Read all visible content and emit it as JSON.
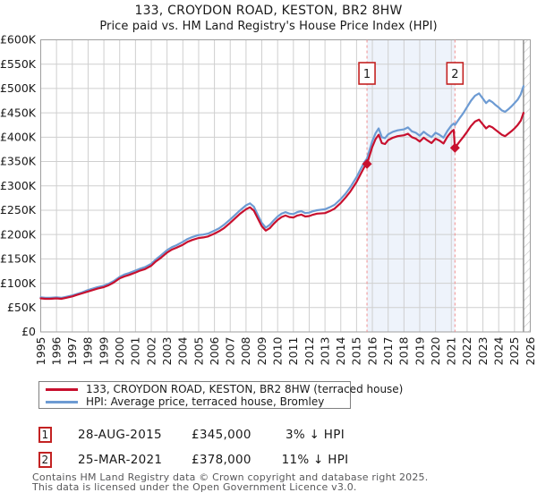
{
  "header": {
    "title": "133, CROYDON ROAD, KESTON, BR2 8HW",
    "subtitle": "Price paid vs. HM Land Registry's House Price Index (HPI)"
  },
  "chart_data": {
    "type": "line",
    "title": "133, CROYDON ROAD, KESTON, BR2 8HW — Price paid vs. HPI",
    "xlabel": "",
    "ylabel": "",
    "x_range": [
      1995,
      2026
    ],
    "ylim": [
      0,
      600000
    ],
    "values_unit": "GBP_thousands",
    "grid": true,
    "legend_position": "bottom",
    "y_tick_labels": [
      "£0",
      "£50K",
      "£100K",
      "£150K",
      "£200K",
      "£250K",
      "£300K",
      "£350K",
      "£400K",
      "£450K",
      "£500K",
      "£550K",
      "£600K"
    ],
    "x_tick_labels": [
      "1995",
      "1996",
      "1997",
      "1998",
      "1999",
      "2000",
      "2001",
      "2002",
      "2003",
      "2004",
      "2005",
      "2006",
      "2007",
      "2008",
      "2009",
      "2010",
      "2011",
      "2012",
      "2013",
      "2014",
      "2015",
      "2016",
      "2017",
      "2018",
      "2019",
      "2020",
      "2021",
      "2022",
      "2023",
      "2024",
      "2025",
      "2026"
    ],
    "x": [
      1995.0,
      1995.3,
      1995.6,
      1996.0,
      1996.3,
      1996.6,
      1997.0,
      1997.3,
      1997.6,
      1998.0,
      1998.3,
      1998.6,
      1999.0,
      1999.3,
      1999.6,
      2000.0,
      2000.3,
      2000.6,
      2001.0,
      2001.3,
      2001.6,
      2002.0,
      2002.3,
      2002.6,
      2003.0,
      2003.3,
      2003.6,
      2004.0,
      2004.3,
      2004.6,
      2005.0,
      2005.3,
      2005.6,
      2006.0,
      2006.3,
      2006.6,
      2007.0,
      2007.3,
      2007.6,
      2008.0,
      2008.25,
      2008.5,
      2008.75,
      2009.0,
      2009.25,
      2009.5,
      2009.75,
      2010.0,
      2010.25,
      2010.5,
      2010.75,
      2011.0,
      2011.25,
      2011.5,
      2011.75,
      2012.0,
      2012.25,
      2012.5,
      2013.0,
      2013.3,
      2013.6,
      2014.0,
      2014.3,
      2014.6,
      2015.0,
      2015.3,
      2015.5,
      2015.66,
      2016.0,
      2016.2,
      2016.4,
      2016.6,
      2016.8,
      2017.0,
      2017.3,
      2017.6,
      2018.0,
      2018.25,
      2018.5,
      2018.75,
      2019.0,
      2019.25,
      2019.5,
      2019.75,
      2020.0,
      2020.25,
      2020.5,
      2020.75,
      2021.0,
      2021.15,
      2021.23,
      2021.5,
      2021.75,
      2022.0,
      2022.25,
      2022.5,
      2022.75,
      2023.0,
      2023.2,
      2023.4,
      2023.6,
      2023.8,
      2024.0,
      2024.2,
      2024.4,
      2024.6,
      2024.8,
      2025.0,
      2025.2,
      2025.4,
      2025.57
    ],
    "series": [
      {
        "name": "133, CROYDON ROAD, KESTON, BR2 8HW (terraced house)",
        "color": "#c8102e",
        "values": [
          69,
          68,
          68,
          69,
          68,
          70,
          73,
          76,
          79,
          83,
          86,
          89,
          92,
          96,
          101,
          110,
          114,
          117,
          122,
          126,
          129,
          136,
          145,
          152,
          163,
          169,
          173,
          179,
          185,
          189,
          193,
          194,
          196,
          202,
          207,
          213,
          224,
          233,
          242,
          252,
          256,
          249,
          233,
          217,
          208,
          213,
          222,
          230,
          236,
          239,
          236,
          235,
          239,
          241,
          237,
          238,
          241,
          243,
          244,
          248,
          253,
          265,
          276,
          288,
          308,
          327,
          339,
          345,
          380,
          396,
          405,
          388,
          386,
          394,
          399,
          402,
          404,
          407,
          400,
          397,
          391,
          399,
          393,
          388,
          397,
          393,
          387,
          401,
          411,
          415,
          378,
          390,
          400,
          411,
          423,
          432,
          436,
          426,
          418,
          423,
          420,
          415,
          410,
          405,
          402,
          407,
          412,
          418,
          425,
          434,
          450
        ]
      },
      {
        "name": "HPI: Average price, terraced house, Bromley",
        "color": "#6d9bd3",
        "values": [
          71,
          70,
          70,
          71,
          70,
          72,
          75,
          78,
          81,
          86,
          89,
          92,
          95,
          99,
          104,
          113,
          118,
          121,
          126,
          130,
          133,
          140,
          149,
          157,
          168,
          174,
          178,
          185,
          191,
          195,
          199,
          200,
          202,
          208,
          213,
          220,
          231,
          240,
          249,
          260,
          264,
          257,
          240,
          224,
          214,
          220,
          229,
          237,
          243,
          246,
          243,
          242,
          246,
          248,
          244,
          245,
          248,
          250,
          252,
          256,
          261,
          273,
          284,
          297,
          318,
          337,
          349,
          356,
          392,
          408,
          418,
          400,
          398,
          406,
          411,
          414,
          416,
          420,
          412,
          409,
          403,
          411,
          405,
          400,
          409,
          405,
          399,
          413,
          424,
          428,
          425,
          438,
          449,
          462,
          475,
          485,
          490,
          479,
          470,
          476,
          472,
          466,
          461,
          455,
          452,
          457,
          463,
          470,
          477,
          488,
          505
        ]
      }
    ],
    "shaded_span": {
      "from": 2015.66,
      "to": 2021.23,
      "color": "#eef3fb"
    },
    "hatch_span": {
      "from": 2025.57,
      "to": 2026
    },
    "sale_markers": [
      {
        "label": "1",
        "x": 2015.66,
        "value": 345
      },
      {
        "label": "2",
        "x": 2021.23,
        "value": 378
      }
    ]
  },
  "legend": {
    "items": [
      {
        "label": "133, CROYDON ROAD, KESTON, BR2 8HW (terraced house)",
        "color": "#c8102e"
      },
      {
        "label": "HPI: Average price, terraced house, Bromley",
        "color": "#6d9bd3"
      }
    ]
  },
  "annotations": [
    {
      "num": "1",
      "date": "28-AUG-2015",
      "price": "£345,000",
      "vs_hpi": "3% ↓ HPI"
    },
    {
      "num": "2",
      "date": "25-MAR-2021",
      "price": "£378,000",
      "vs_hpi": "11% ↓ HPI"
    }
  ],
  "footer": {
    "line1": "Contains HM Land Registry data © Crown copyright and database right 2025.",
    "line2": "This data is licensed under the Open Government Licence v3.0."
  },
  "colors": {
    "property_line": "#c8102e",
    "hpi_line": "#6d9bd3",
    "grid": "#cfcfcf",
    "plot_border": "#9e9e9e",
    "dashed_marker_line": "#f0908f",
    "marker_box_border": "#c32222",
    "shading": "#eef3fb",
    "hatch": "#c9c9c9",
    "footer_text": "#58585a"
  }
}
